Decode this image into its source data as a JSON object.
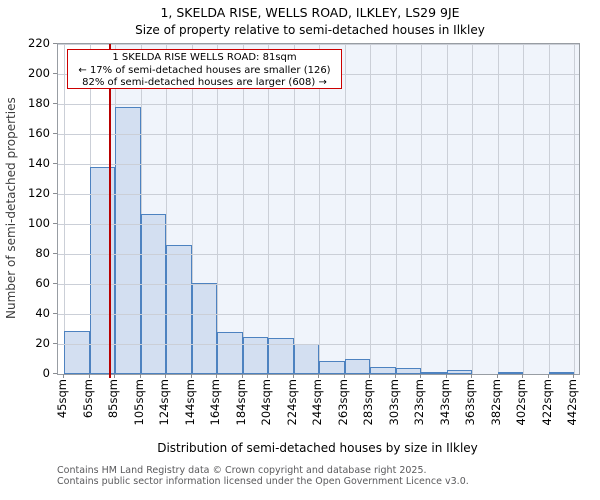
{
  "page_title": "1, SKELDA RISE, WELLS ROAD, ILKLEY, LS29 9JE",
  "subtitle": "Size of property relative to semi-detached houses in Ilkley",
  "annotation": {
    "line1": "1 SKELDA RISE WELLS ROAD: 81sqm",
    "line2": "← 17% of semi-detached houses are smaller (126)",
    "line3": "82% of semi-detached houses are larger (608) →"
  },
  "chart_data": {
    "type": "bar",
    "title": "1, SKELDA RISE, WELLS ROAD, ILKLEY, LS29 9JE",
    "subtitle": "Size of property relative to semi-detached houses in Ilkley",
    "xlabel": "Distribution of semi-detached houses by size in Ilkley",
    "ylabel": "Number of semi-detached properties",
    "categories": [
      "45sqm",
      "65sqm",
      "85sqm",
      "105sqm",
      "124sqm",
      "144sqm",
      "164sqm",
      "184sqm",
      "204sqm",
      "224sqm",
      "244sqm",
      "263sqm",
      "283sqm",
      "303sqm",
      "323sqm",
      "343sqm",
      "363sqm",
      "382sqm",
      "402sqm",
      "422sqm",
      "442sqm"
    ],
    "bin_edges_sqm": [
      45,
      65,
      85,
      105,
      124,
      144,
      164,
      184,
      204,
      224,
      244,
      263,
      283,
      303,
      323,
      343,
      363,
      382,
      402,
      422,
      442
    ],
    "values": [
      29,
      138,
      178,
      107,
      86,
      61,
      28,
      25,
      24,
      20,
      9,
      10,
      5,
      4,
      1,
      3,
      0,
      1,
      0,
      1
    ],
    "ylim": [
      0,
      220
    ],
    "ytick_step": 20,
    "grid": true,
    "legend": false,
    "marker": {
      "value_sqm": 81,
      "smaller_pct": 17,
      "smaller_count": 126,
      "larger_pct": 82,
      "larger_count": 608
    },
    "colors": {
      "bar_fill": "#d3dff1",
      "bar_edge": "#4d82c0",
      "marker_line": "#b80000",
      "annotation_border": "#cc0000",
      "background_right": "#f0f4fb",
      "grid": "#cbcfd7"
    }
  },
  "footer": {
    "line1": "Contains HM Land Registry data © Crown copyright and database right 2025.",
    "line2": "Contains public sector information licensed under the Open Government Licence v3.0."
  }
}
